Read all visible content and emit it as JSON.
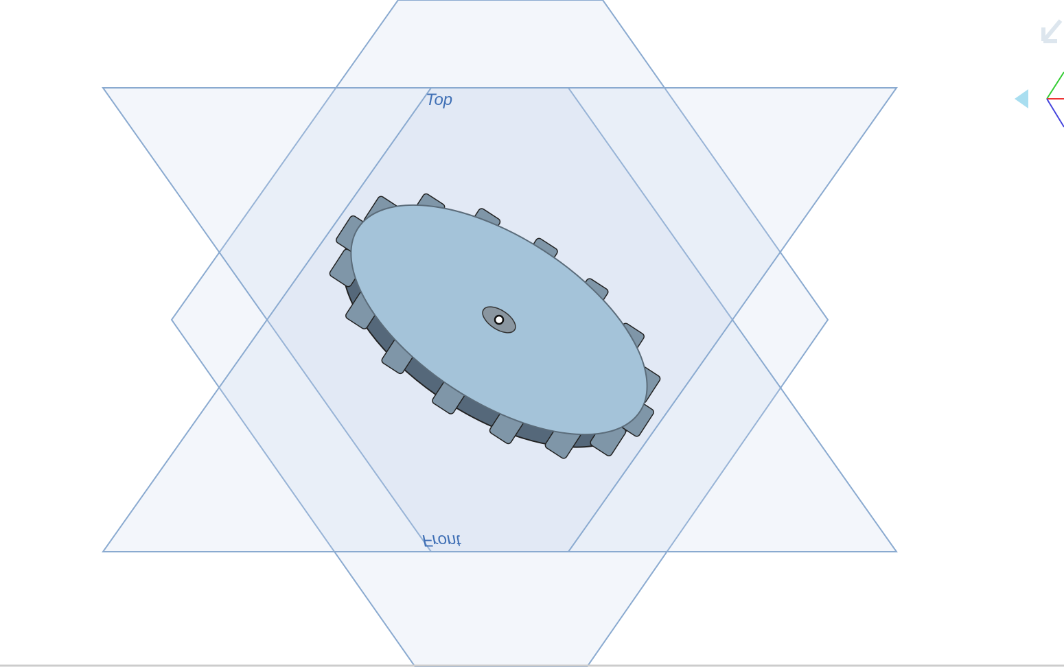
{
  "viewport": {
    "plane_labels": [
      "Top",
      "Front"
    ]
  }
}
